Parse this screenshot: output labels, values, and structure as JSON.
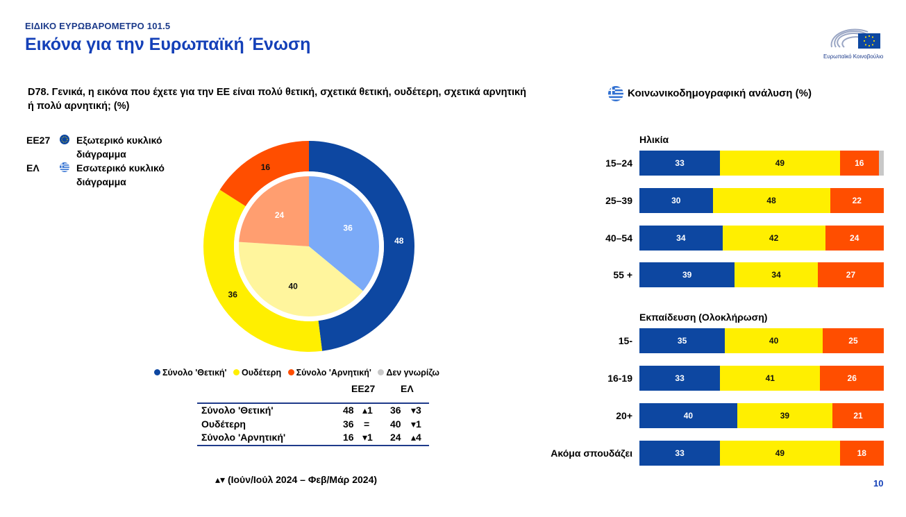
{
  "header": {
    "kicker": "ΕΙΔΙΚΟ ΕΥΡΩΒΑΡΟΜΕΤΡΟ 101.5",
    "title": "Εικόνα για την Ευρωπαϊκή Ένωση",
    "logo_text": "Ευρωπαϊκό Κοινοβούλιο"
  },
  "question": "D78. Γενικά, η εικόνα που έχετε για την ΕΕ είναι πολύ θετική, σχετικά θετική, ουδέτερη, σχετικά αρνητική ή πολύ αρνητική; (%)",
  "ring_legend": {
    "outer_key": "ΕΕ27",
    "outer_label": "Εξωτερικό κυκλικό διάγραμμα",
    "inner_key": "ΕΛ",
    "inner_label": "Εσωτερικό κυκλικό διάγραμμα"
  },
  "series_legend": [
    {
      "label": "Σύνολο 'Θετική'",
      "color": "#0d47a1"
    },
    {
      "label": "Ουδέτερη",
      "color": "#ffef00"
    },
    {
      "label": "Σύνολο 'Αρνητική'",
      "color": "#ff4e00"
    },
    {
      "label": "Δεν γνωρίζω",
      "color": "#c8c8c8"
    }
  ],
  "table": {
    "col_eu": "ΕΕ27",
    "col_el": "ΕΛ",
    "rows": [
      {
        "label": "Σύνολο 'Θετική'",
        "eu": "48",
        "eu_chg": "▴1",
        "el": "36",
        "el_chg": "▾3"
      },
      {
        "label": "Ουδέτερη",
        "eu": "36",
        "eu_chg": "=",
        "el": "40",
        "el_chg": "▾1"
      },
      {
        "label": "Σύνολο 'Αρνητική'",
        "eu": "16",
        "eu_chg": "▾1",
        "el": "24",
        "el_chg": "▴4"
      }
    ]
  },
  "arrow_note": "▴▾ (Ιούν/Ιούλ 2024 – Φεβ/Μάρ 2024)",
  "page_number": "10",
  "socio_title": "Κοινωνικοδημογραφική ανάλυση (%)",
  "chart_data": [
    {
      "type": "pie",
      "series": [
        {
          "name": "ΕΕ27",
          "values": [
            48,
            36,
            16
          ],
          "colors": [
            "#0d47a1",
            "#ffef00",
            "#ff4e00"
          ]
        },
        {
          "name": "ΕΛ",
          "values": [
            36,
            40,
            24
          ],
          "colors": [
            "#7baaf7",
            "#fff59d",
            "#ff9e70"
          ]
        }
      ],
      "categories": [
        "Σύνολο 'Θετική'",
        "Ουδέτερη",
        "Σύνολο 'Αρνητική'"
      ]
    },
    {
      "type": "bar",
      "stacked": true,
      "orientation": "horizontal",
      "sections": [
        {
          "title": "Ηλικία",
          "rows": [
            {
              "label": "15–24",
              "pos": 33,
              "neu": 49,
              "neg": 16,
              "dk": 2
            },
            {
              "label": "25–39",
              "pos": 30,
              "neu": 48,
              "neg": 22,
              "dk": 0
            },
            {
              "label": "40–54",
              "pos": 34,
              "neu": 42,
              "neg": 24,
              "dk": 0
            },
            {
              "label": "55 +",
              "pos": 39,
              "neu": 34,
              "neg": 27,
              "dk": 0
            }
          ]
        },
        {
          "title": "Εκπαίδευση (Ολοκλήρωση)",
          "rows": [
            {
              "label": "15-",
              "pos": 35,
              "neu": 40,
              "neg": 25,
              "dk": 0
            },
            {
              "label": "16-19",
              "pos": 33,
              "neu": 41,
              "neg": 26,
              "dk": 0
            },
            {
              "label": "20+",
              "pos": 40,
              "neu": 39,
              "neg": 21,
              "dk": 0
            },
            {
              "label": "Ακόμα σπουδάζει",
              "pos": 33,
              "neu": 49,
              "neg": 18,
              "dk": 0
            }
          ]
        }
      ]
    }
  ]
}
